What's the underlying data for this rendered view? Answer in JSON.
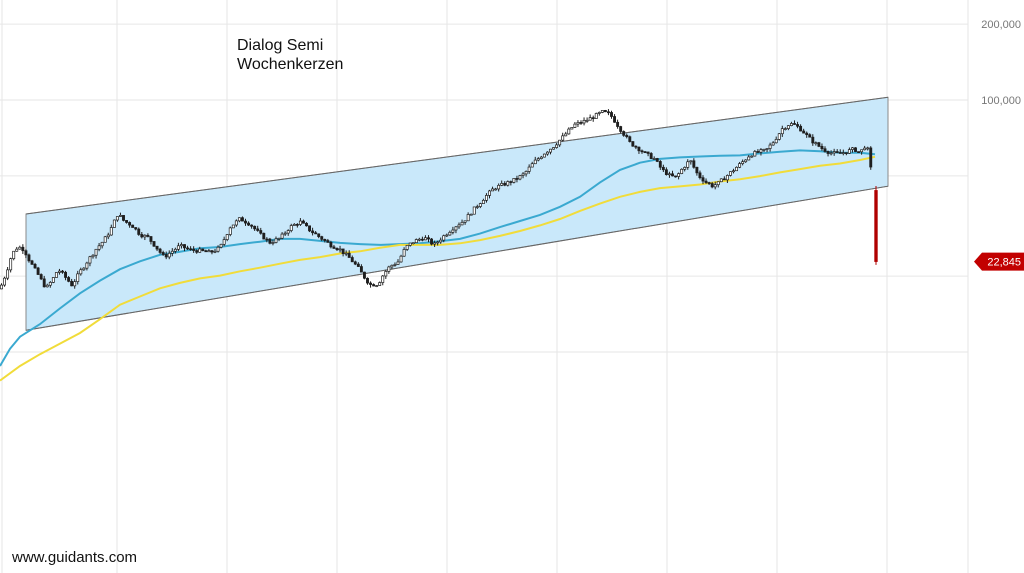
{
  "chart_data": {
    "type": "line",
    "title": "Dialog Semi",
    "subtitle": "Wochenkerzen",
    "watermark": "www.guidants.com",
    "y_scale": "log",
    "y_tick_labels": [
      "200,000",
      "100,000"
    ],
    "y_ticks": [
      200000,
      100000
    ],
    "last_price_label": "22,845",
    "last_price": 22.845,
    "colors": {
      "channel_fill": "#c9e8fa",
      "channel_border": "#8a8a8a",
      "ma_short": "#3aa9d0",
      "ma_long": "#f1dc3a",
      "candle_up": "#ffffff",
      "candle_down": "#1f1f1f",
      "last_candle": "#b00000",
      "price_badge": "#c20000",
      "grid": "#e6e6e6"
    },
    "series": [
      {
        "kind": "price",
        "points": [
          [
            0,
            17.8
          ],
          [
            6,
            20.5
          ],
          [
            12,
            24.5
          ],
          [
            18,
            26.2
          ],
          [
            24,
            25.5
          ],
          [
            30,
            22.8
          ],
          [
            38,
            20.3
          ],
          [
            46,
            17.9
          ],
          [
            52,
            19.2
          ],
          [
            58,
            21.3
          ],
          [
            64,
            20.1
          ],
          [
            72,
            18.4
          ],
          [
            80,
            20.8
          ],
          [
            88,
            23.1
          ],
          [
            96,
            25.6
          ],
          [
            104,
            27.8
          ],
          [
            110,
            30.2
          ],
          [
            114,
            32.8
          ],
          [
            118,
            35.4
          ],
          [
            124,
            33.1
          ],
          [
            132,
            31.8
          ],
          [
            140,
            29.3
          ],
          [
            148,
            28.5
          ],
          [
            156,
            26.1
          ],
          [
            164,
            23.8
          ],
          [
            172,
            25.1
          ],
          [
            180,
            26.4
          ],
          [
            190,
            25.4
          ],
          [
            200,
            25.2
          ],
          [
            210,
            24.8
          ],
          [
            220,
            25.9
          ],
          [
            230,
            31.3
          ],
          [
            240,
            33.8
          ],
          [
            250,
            32.2
          ],
          [
            260,
            29.3
          ],
          [
            270,
            27.2
          ],
          [
            280,
            28.3
          ],
          [
            290,
            31.3
          ],
          [
            300,
            32.9
          ],
          [
            310,
            30.4
          ],
          [
            320,
            28.5
          ],
          [
            330,
            26.7
          ],
          [
            340,
            25.5
          ],
          [
            350,
            23.5
          ],
          [
            358,
            21.6
          ],
          [
            364,
            19.9
          ],
          [
            370,
            18.5
          ],
          [
            378,
            18.6
          ],
          [
            384,
            20.5
          ],
          [
            390,
            21.9
          ],
          [
            398,
            22.8
          ],
          [
            406,
            26.1
          ],
          [
            414,
            27.5
          ],
          [
            424,
            28.5
          ],
          [
            434,
            26.6
          ],
          [
            444,
            28.9
          ],
          [
            454,
            31.3
          ],
          [
            464,
            33.2
          ],
          [
            474,
            36.9
          ],
          [
            484,
            40.8
          ],
          [
            494,
            44.7
          ],
          [
            504,
            46.3
          ],
          [
            514,
            48.1
          ],
          [
            524,
            50.8
          ],
          [
            534,
            56.6
          ],
          [
            544,
            61.4
          ],
          [
            554,
            65.7
          ],
          [
            564,
            72.1
          ],
          [
            574,
            79.6
          ],
          [
            584,
            82.3
          ],
          [
            594,
            85.9
          ],
          [
            602,
            89.7
          ],
          [
            610,
            87.8
          ],
          [
            616,
            81.2
          ],
          [
            622,
            75.0
          ],
          [
            630,
            67.6
          ],
          [
            638,
            64.4
          ],
          [
            646,
            61.0
          ],
          [
            654,
            58.6
          ],
          [
            662,
            52.9
          ],
          [
            670,
            50.0
          ],
          [
            676,
            49.2
          ],
          [
            682,
            53.2
          ],
          [
            690,
            57.8
          ],
          [
            698,
            50.3
          ],
          [
            706,
            47.2
          ],
          [
            712,
            45.7
          ],
          [
            718,
            46.6
          ],
          [
            726,
            49.7
          ],
          [
            734,
            53.0
          ],
          [
            742,
            56.5
          ],
          [
            750,
            60.6
          ],
          [
            758,
            62.1
          ],
          [
            766,
            63.1
          ],
          [
            774,
            68.6
          ],
          [
            782,
            76.8
          ],
          [
            790,
            80.6
          ],
          [
            796,
            79.2
          ],
          [
            802,
            75.8
          ],
          [
            808,
            71.3
          ],
          [
            814,
            67.8
          ],
          [
            822,
            64.2
          ],
          [
            830,
            61.8
          ],
          [
            838,
            61.2
          ],
          [
            846,
            62.3
          ],
          [
            854,
            63.9
          ],
          [
            860,
            61.8
          ],
          [
            866,
            66.6
          ],
          [
            870,
            59.5
          ],
          [
            873,
            38.7
          ],
          [
            876,
            25.1
          ],
          [
            878,
            22.845
          ]
        ]
      },
      {
        "kind": "moving_average",
        "color_key": "ma_short",
        "points": [
          [
            0,
            8.8
          ],
          [
            10,
            10.3
          ],
          [
            20,
            11.5
          ],
          [
            40,
            12.9
          ],
          [
            60,
            14.9
          ],
          [
            80,
            17.1
          ],
          [
            100,
            19.2
          ],
          [
            120,
            21.3
          ],
          [
            140,
            22.9
          ],
          [
            160,
            24.3
          ],
          [
            180,
            25.0
          ],
          [
            200,
            25.8
          ],
          [
            220,
            26.1
          ],
          [
            240,
            26.8
          ],
          [
            260,
            27.4
          ],
          [
            280,
            28.1
          ],
          [
            300,
            28.1
          ],
          [
            320,
            27.6
          ],
          [
            340,
            27.1
          ],
          [
            360,
            26.8
          ],
          [
            380,
            26.6
          ],
          [
            400,
            26.8
          ],
          [
            420,
            27.0
          ],
          [
            440,
            27.5
          ],
          [
            460,
            28.1
          ],
          [
            480,
            29.5
          ],
          [
            500,
            31.3
          ],
          [
            520,
            33.1
          ],
          [
            540,
            35.0
          ],
          [
            560,
            37.7
          ],
          [
            580,
            41.3
          ],
          [
            600,
            47.1
          ],
          [
            620,
            52.8
          ],
          [
            640,
            56.4
          ],
          [
            660,
            58.4
          ],
          [
            680,
            59.2
          ],
          [
            700,
            59.7
          ],
          [
            720,
            60.1
          ],
          [
            740,
            60.3
          ],
          [
            760,
            61.4
          ],
          [
            780,
            62.3
          ],
          [
            800,
            63.1
          ],
          [
            820,
            62.6
          ],
          [
            840,
            61.8
          ],
          [
            860,
            61.8
          ],
          [
            875,
            60.9
          ]
        ]
      },
      {
        "kind": "moving_average",
        "color_key": "ma_long",
        "points": [
          [
            0,
            7.7
          ],
          [
            20,
            8.8
          ],
          [
            40,
            9.8
          ],
          [
            60,
            10.8
          ],
          [
            80,
            11.9
          ],
          [
            100,
            13.5
          ],
          [
            120,
            15.4
          ],
          [
            140,
            16.6
          ],
          [
            160,
            17.9
          ],
          [
            180,
            18.8
          ],
          [
            200,
            19.6
          ],
          [
            220,
            20.1
          ],
          [
            240,
            20.9
          ],
          [
            260,
            21.6
          ],
          [
            280,
            22.4
          ],
          [
            300,
            23.2
          ],
          [
            320,
            23.8
          ],
          [
            340,
            24.6
          ],
          [
            360,
            25.1
          ],
          [
            380,
            25.9
          ],
          [
            400,
            26.6
          ],
          [
            420,
            26.6
          ],
          [
            440,
            26.6
          ],
          [
            460,
            27.0
          ],
          [
            480,
            27.8
          ],
          [
            500,
            28.9
          ],
          [
            520,
            30.2
          ],
          [
            540,
            31.8
          ],
          [
            560,
            33.7
          ],
          [
            580,
            36.3
          ],
          [
            600,
            38.8
          ],
          [
            620,
            41.3
          ],
          [
            640,
            43.2
          ],
          [
            660,
            44.7
          ],
          [
            680,
            45.4
          ],
          [
            700,
            46.2
          ],
          [
            720,
            47.5
          ],
          [
            740,
            48.5
          ],
          [
            760,
            49.9
          ],
          [
            780,
            51.6
          ],
          [
            800,
            53.2
          ],
          [
            820,
            54.8
          ],
          [
            840,
            56.0
          ],
          [
            860,
            57.8
          ],
          [
            875,
            59.5
          ]
        ]
      },
      {
        "kind": "channel_upper",
        "points": [
          [
            26,
            35.3
          ],
          [
            888,
            102.5
          ]
        ]
      },
      {
        "kind": "channel_lower",
        "points": [
          [
            26,
            12.2
          ],
          [
            888,
            45.5
          ]
        ]
      }
    ]
  }
}
